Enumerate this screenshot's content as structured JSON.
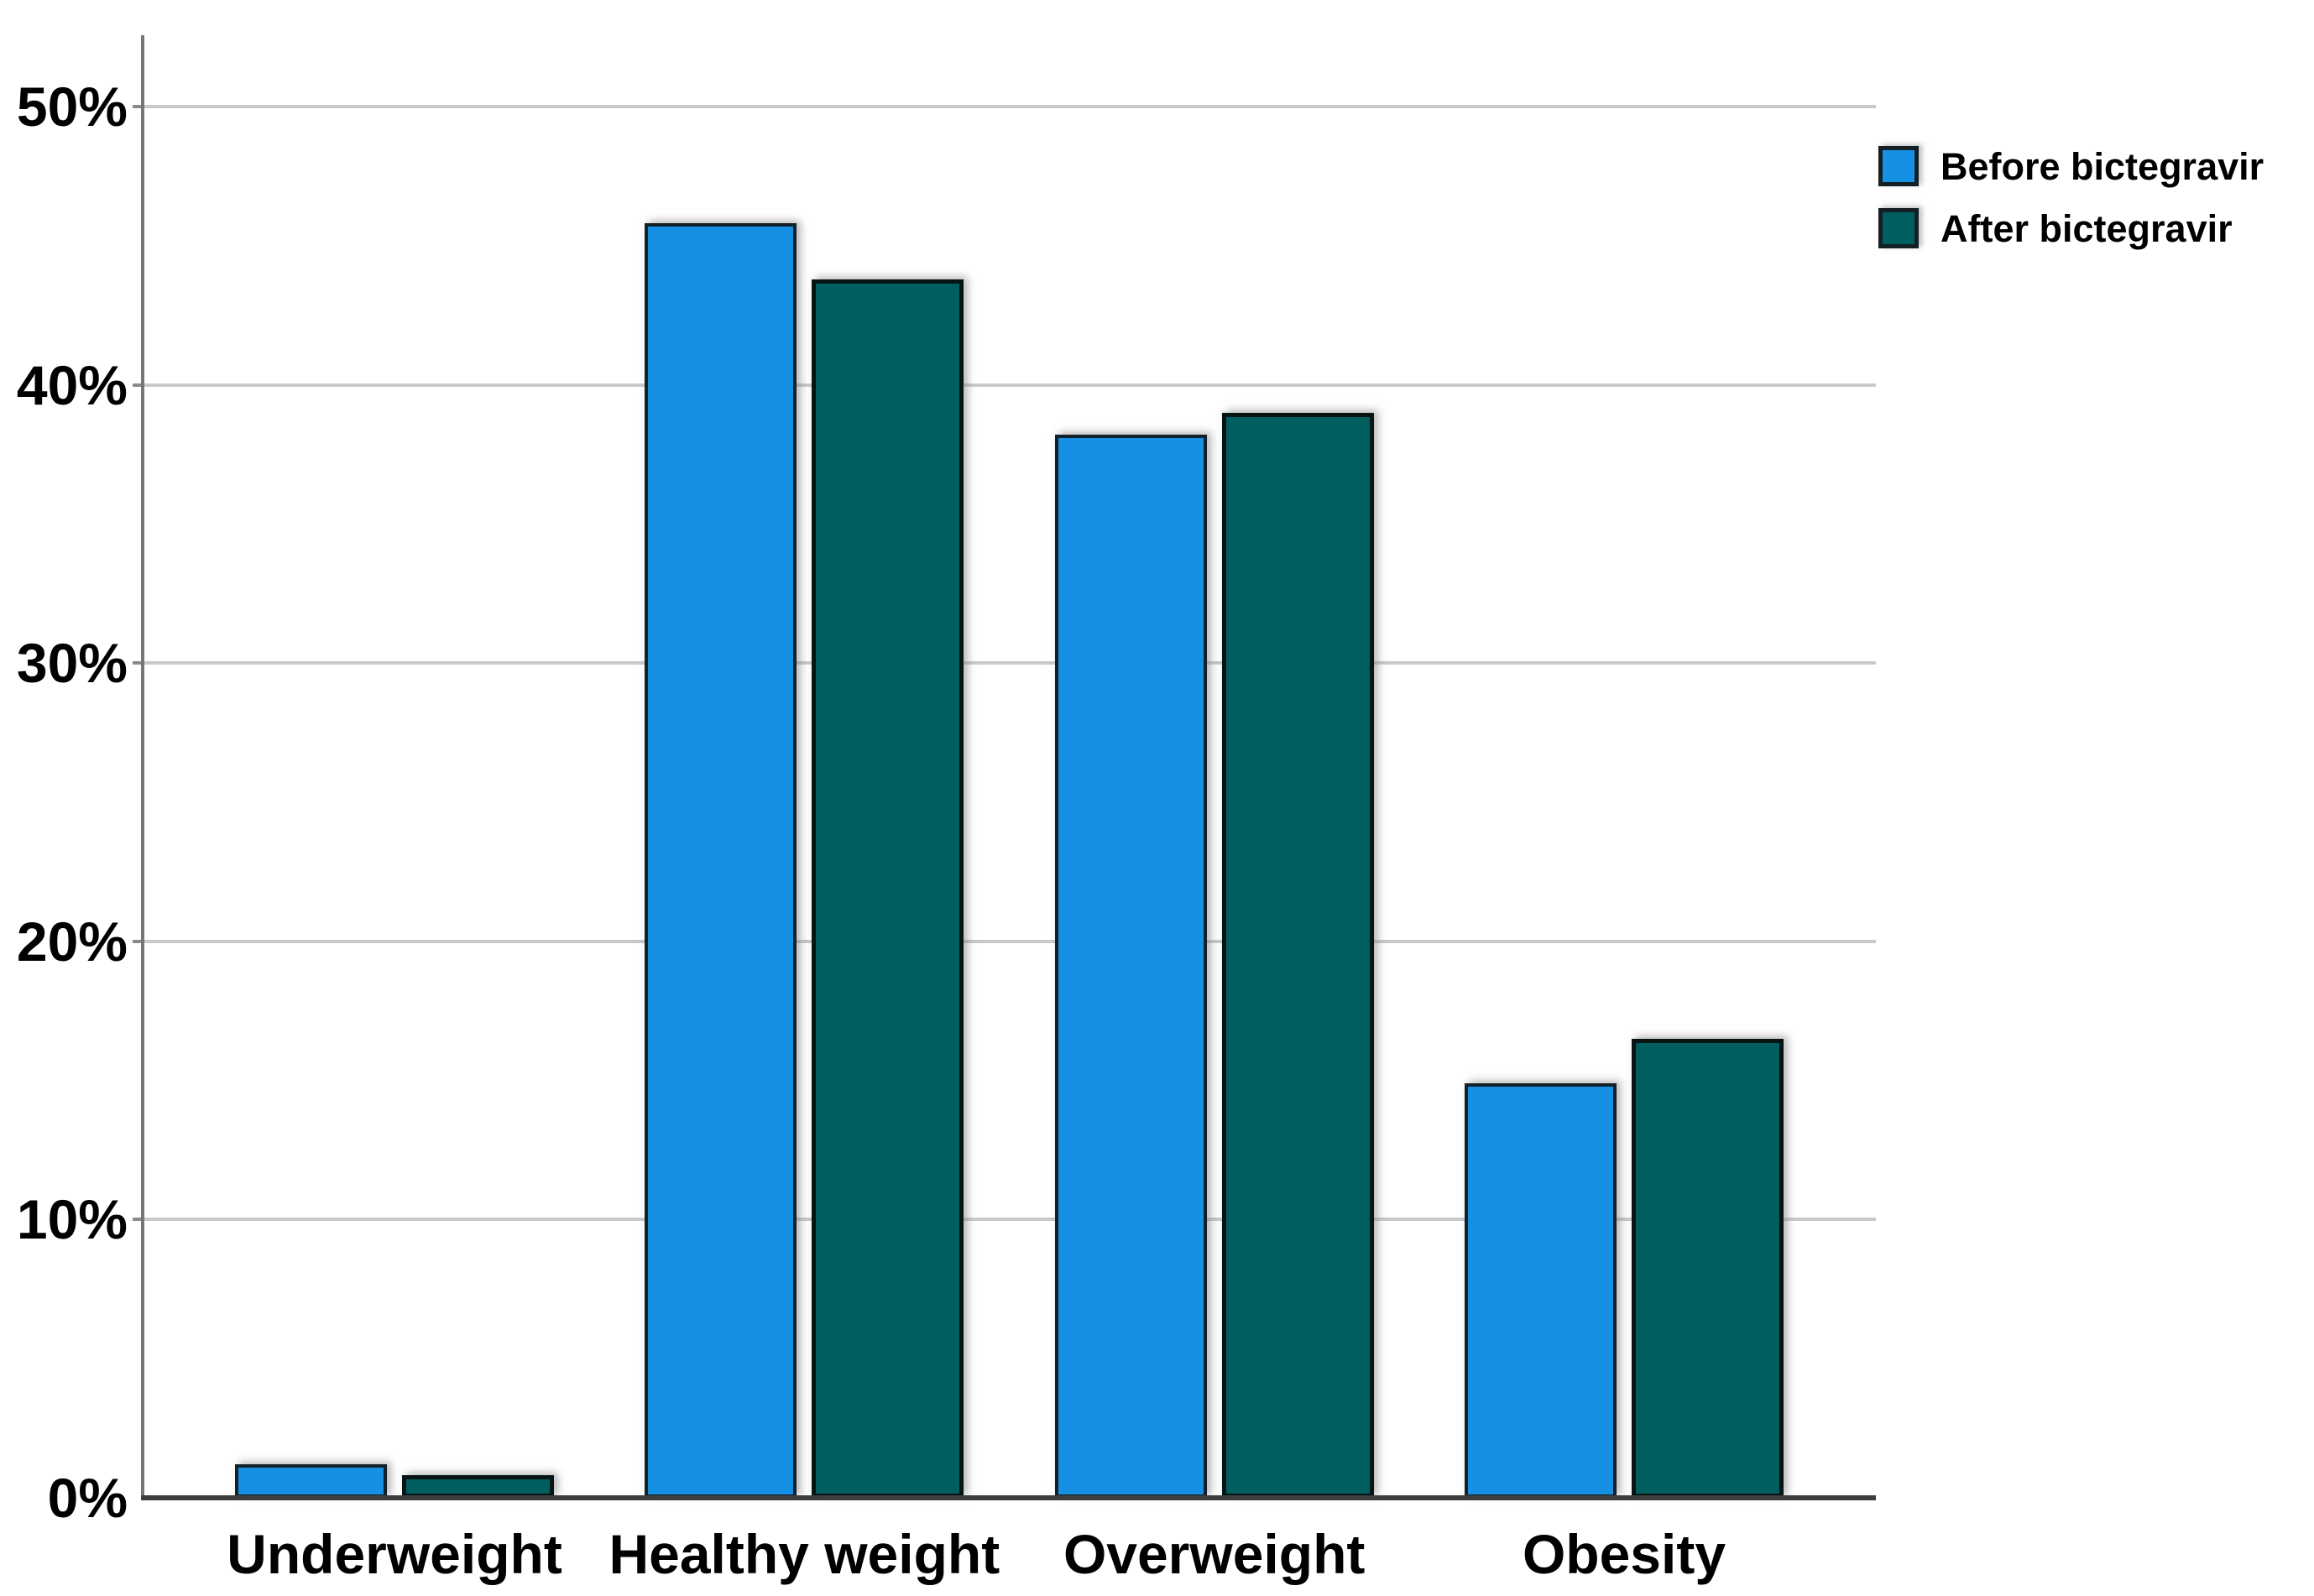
{
  "figure": {
    "background": "#FFFFFF"
  },
  "chart_data": {
    "type": "bar",
    "title": "",
    "subtitle": "",
    "categories": [
      "Underweight",
      "Healthy weight",
      "Overweight",
      "Obesity"
    ],
    "series": [
      {
        "name": "Before bictegravir",
        "color": "#1590E2",
        "values": [
          1.2,
          45.8,
          38.2,
          14.9
        ]
      },
      {
        "name": "After bictegravir",
        "color": "#005E5F",
        "values": [
          0.8,
          43.8,
          39.0,
          16.5
        ]
      }
    ],
    "xlabel": "",
    "ylabel": "",
    "y_ticks": [
      "0%",
      "10%",
      "20%",
      "30%",
      "40%",
      "50%"
    ],
    "y_tick_values": [
      0,
      10,
      20,
      30,
      40,
      50
    ],
    "ylim": [
      0,
      52.5
    ],
    "grid": true,
    "gridline_color": "#C9C9C9",
    "y_axis_line_color": "#767676",
    "x_axis_line_color": "#3D3D3D",
    "label_color": "#000000",
    "legend_position": "top-right"
  }
}
